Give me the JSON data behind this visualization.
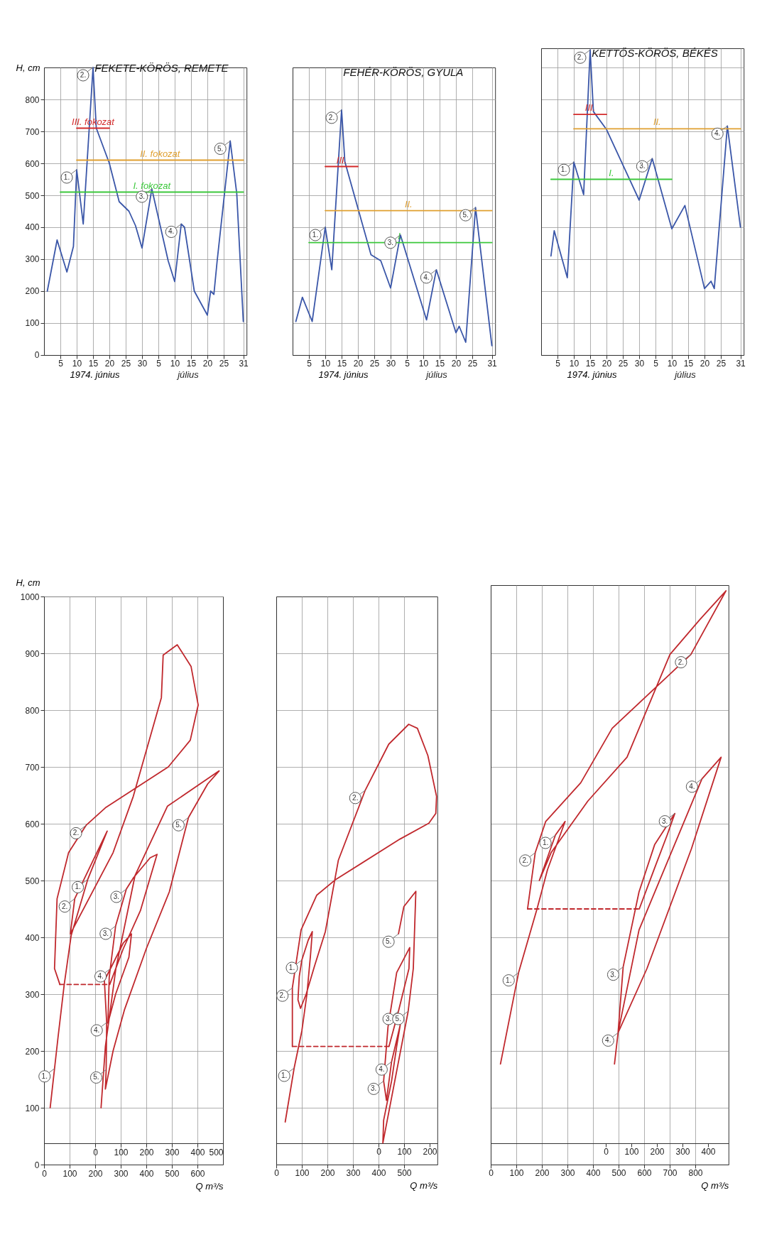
{
  "chart_data": [
    {
      "type": "line",
      "title": "FEKETE-KÖRÖS, REMETE",
      "ylabel": "H, cm",
      "xlabel": "1974. június",
      "xlim": [
        "1974-05-31",
        "1974-08-01"
      ],
      "ylim": [
        0,
        900
      ],
      "yticks": [
        0,
        100,
        200,
        300,
        400,
        500,
        600,
        700,
        800
      ],
      "grid": true,
      "xticks": [
        {
          "value": "1974-06-05",
          "label": "5"
        },
        {
          "value": "1974-06-10",
          "label": "10"
        },
        {
          "value": "1974-06-15",
          "label": "15"
        },
        {
          "value": "1974-06-20",
          "label": "20"
        },
        {
          "value": "1974-06-25",
          "label": "25"
        },
        {
          "value": "1974-06-30",
          "label": "30"
        },
        {
          "value": "1974-07-05",
          "label": "5"
        },
        {
          "value": "1974-07-10",
          "label": "10"
        },
        {
          "value": "1974-07-15",
          "label": "15"
        },
        {
          "value": "1974-07-20",
          "label": "20"
        },
        {
          "value": "1974-07-25",
          "label": "25"
        },
        {
          "value": "1974-07-31",
          "label": "31"
        }
      ],
      "series": [
        {
          "color": "#3a56a8",
          "x": [
            "1974-06-01",
            "1974-06-04",
            "1974-06-07",
            "1974-06-09",
            "1974-06-10",
            "1974-06-12",
            "1974-06-15",
            "1974-06-16",
            "1974-06-20",
            "1974-06-23",
            "1974-06-26",
            "1974-06-28",
            "1974-06-30",
            "1974-07-03",
            "1974-07-08",
            "1974-07-10",
            "1974-07-12",
            "1974-07-13",
            "1974-07-16",
            "1974-07-20",
            "1974-07-21",
            "1974-07-22",
            "1974-07-23",
            "1974-07-27",
            "1974-07-29",
            "1974-07-31"
          ],
          "values": [
            200,
            360,
            260,
            340,
            580,
            410,
            900,
            710,
            600,
            480,
            450,
            405,
            335,
            520,
            295,
            230,
            410,
            400,
            200,
            125,
            200,
            190,
            295,
            670,
            505,
            105
          ]
        },
        {
          "name": "III. fokozat",
          "color": "#d42a2a",
          "x": [
            "1974-06-10",
            "1974-06-20"
          ],
          "values": [
            710,
            710
          ]
        },
        {
          "name": "II. fokozat",
          "color": "#e0a030",
          "x": [
            "1974-06-10",
            "1974-07-31"
          ],
          "values": [
            610,
            610
          ]
        },
        {
          "name": "I. fokozat",
          "color": "#3cc83c",
          "x": [
            "1974-06-05",
            "1974-07-31"
          ],
          "values": [
            510,
            510
          ]
        }
      ],
      "annotations": [
        {
          "text": "1.",
          "x": "1974-06-10",
          "y": 580
        },
        {
          "text": "2.",
          "x": "1974-06-15",
          "y": 900
        },
        {
          "text": "3.",
          "x": "1974-07-03",
          "y": 520
        },
        {
          "text": "4.",
          "x": "1974-07-12",
          "y": 410
        },
        {
          "text": "5.",
          "x": "1974-07-27",
          "y": 670
        },
        "július"
      ]
    },
    {
      "type": "line",
      "title": "FEHÉR-KÖRÖS, GYULA",
      "xlabel": "1974. június",
      "xlim": [
        "1974-05-31",
        "1974-08-01"
      ],
      "ylim": [
        0,
        900
      ],
      "yticks": [
        0,
        100,
        200,
        300,
        400,
        500,
        600,
        700,
        800
      ],
      "grid": true,
      "tick_labels": "x",
      "xticks": [
        {
          "value": "1974-06-05",
          "label": "5"
        },
        {
          "value": "1974-06-10",
          "label": "10"
        },
        {
          "value": "1974-06-15",
          "label": "15"
        },
        {
          "value": "1974-06-20",
          "label": "20"
        },
        {
          "value": "1974-06-25",
          "label": "25"
        },
        {
          "value": "1974-06-30",
          "label": "30"
        },
        {
          "value": "1974-07-05",
          "label": "5"
        },
        {
          "value": "1974-07-10",
          "label": "10"
        },
        {
          "value": "1974-07-15",
          "label": "15"
        },
        {
          "value": "1974-07-20",
          "label": "20"
        },
        {
          "value": "1974-07-25",
          "label": "25"
        },
        {
          "value": "1974-07-31",
          "label": "31"
        }
      ],
      "series": [
        {
          "color": "#3a56a8",
          "x": [
            "1974-06-01",
            "1974-06-03",
            "1974-06-06",
            "1974-06-10",
            "1974-06-12",
            "1974-06-15",
            "1974-06-16",
            "1974-06-24",
            "1974-06-27",
            "1974-06-30",
            "1974-07-03",
            "1974-07-11",
            "1974-07-14",
            "1974-07-20",
            "1974-07-21",
            "1974-07-23",
            "1974-07-26",
            "1974-07-31"
          ],
          "values": [
            105,
            181,
            105,
            400,
            267,
            767,
            605,
            314,
            295,
            210,
            376,
            110,
            267,
            70,
            90,
            40,
            462,
            29
          ]
        },
        {
          "name": "III.",
          "color": "#d42a2a",
          "x": [
            "1974-06-10",
            "1974-06-20"
          ],
          "values": [
            590,
            590
          ]
        },
        {
          "name": "II.",
          "color": "#e0a030",
          "x": [
            "1974-06-10",
            "1974-07-31"
          ],
          "values": [
            452,
            452
          ]
        },
        {
          "name": "I.",
          "color": "#3cc83c",
          "x": [
            "1974-06-05",
            "1974-07-31"
          ],
          "values": [
            352,
            352
          ]
        }
      ],
      "annotations": [
        {
          "text": "1.",
          "x": "1974-06-10",
          "y": 400
        },
        {
          "text": "2.",
          "x": "1974-06-15",
          "y": 767
        },
        {
          "text": "3.",
          "x": "1974-07-03",
          "y": 376
        },
        {
          "text": "4.",
          "x": "1974-07-14",
          "y": 267
        },
        {
          "text": "5.",
          "x": "1974-07-26",
          "y": 462
        },
        "július"
      ]
    },
    {
      "type": "line",
      "title": "KETTŐS-KÖRÖS, BÉKÉS",
      "xlabel": "1974. június",
      "xlim": [
        "1974-05-31",
        "1974-08-01"
      ],
      "ylim": [
        0,
        960
      ],
      "yticks": [
        0,
        100,
        200,
        300,
        400,
        500,
        600,
        700,
        800,
        900
      ],
      "grid": true,
      "tick_labels": "x",
      "xticks": [
        {
          "value": "1974-06-05",
          "label": "5"
        },
        {
          "value": "1974-06-10",
          "label": "10"
        },
        {
          "value": "1974-06-15",
          "label": "15"
        },
        {
          "value": "1974-06-20",
          "label": "20"
        },
        {
          "value": "1974-06-25",
          "label": "25"
        },
        {
          "value": "1974-06-30",
          "label": "30"
        },
        {
          "value": "1974-07-05",
          "label": "5"
        },
        {
          "value": "1974-07-10",
          "label": "10"
        },
        {
          "value": "1974-07-15",
          "label": "15"
        },
        {
          "value": "1974-07-20",
          "label": "20"
        },
        {
          "value": "1974-07-25",
          "label": "25"
        },
        {
          "value": "1974-07-31",
          "label": "31"
        }
      ],
      "series": [
        {
          "color": "#3a56a8",
          "x": [
            "1974-06-03",
            "1974-06-04",
            "1974-06-08",
            "1974-06-10",
            "1974-06-13",
            "1974-06-15",
            "1974-06-16",
            "1974-06-20",
            "1974-06-30",
            "1974-07-04",
            "1974-07-10",
            "1974-07-14",
            "1974-07-20",
            "1974-07-22",
            "1974-07-23",
            "1974-07-27",
            "1974-07-31"
          ],
          "values": [
            310,
            389,
            242,
            604,
            502,
            955,
            762,
            706,
            485,
            615,
            395,
            468,
            208,
            231,
            208,
            717,
            400
          ]
        },
        {
          "name": "III.",
          "color": "#d42a2a",
          "x": [
            "1974-06-10",
            "1974-06-20"
          ],
          "values": [
            753,
            753
          ]
        },
        {
          "name": "II.",
          "color": "#e0a030",
          "x": [
            "1974-06-10",
            "1974-07-31"
          ],
          "values": [
            708,
            708
          ]
        },
        {
          "name": "I.",
          "color": "#3cc83c",
          "x": [
            "1974-06-03",
            "1974-07-10"
          ],
          "values": [
            550,
            550
          ]
        }
      ],
      "annotations": [
        {
          "text": "1.",
          "x": "1974-06-10",
          "y": 604
        },
        {
          "text": "2.",
          "x": "1974-06-15",
          "y": 955
        },
        {
          "text": "3.",
          "x": "1974-07-04",
          "y": 615
        },
        {
          "text": "4.",
          "x": "1974-07-27",
          "y": 717
        },
        "július"
      ]
    },
    {
      "type": "line",
      "xlabel": "Q m³/s",
      "ylabel": "H, cm",
      "xlim": [
        0,
        700
      ],
      "xticks": [
        0,
        100,
        200,
        300,
        400,
        500,
        600
      ],
      "x2lim": [
        -200,
        500
      ],
      "x2ticks": [
        0,
        100,
        200,
        300,
        400,
        500
      ],
      "ylim": [
        0,
        1000
      ],
      "yticks": [
        0,
        100,
        200,
        300,
        400,
        500,
        600,
        700,
        800,
        900,
        1000
      ],
      "grid": true,
      "series": [
        {
          "color": "#c0282d",
          "x": [
            24,
            55,
            79,
            106,
            171,
            247,
            120,
            103,
            270,
            349,
            459,
            466,
            521,
            575,
            603,
            572,
            486,
            240,
            164,
            96,
            51,
            41,
            62
          ],
          "values": [
            100,
            225,
            317,
            403,
            502,
            587,
            468,
            406,
            549,
            648,
            822,
            897,
            915,
            877,
            809,
            747,
            700,
            628,
            597,
            549,
            468,
            345,
            317
          ]
        },
        {
          "color": "#c0282d",
          "line_style": "dashed",
          "x": [
            62,
            255
          ],
          "values": [
            317,
            317
          ]
        },
        {
          "color": "#c0282d",
          "axis": "x2",
          "x": [
            57,
            110,
            177,
            225,
            242,
            215,
            150,
            122,
            80,
            55,
            50,
            80,
            132,
            142,
            110,
            60,
            36,
            45,
            43,
            40,
            70,
            115,
            200,
            290,
            365,
            440,
            485,
            283,
            156,
            81,
            40,
            23
          ],
          "values": [
            317,
            380,
            447,
            520,
            546,
            540,
            505,
            485,
            420,
            330,
            249,
            300,
            365,
            406,
            390,
            345,
            324,
            250,
            167,
            133,
            200,
            273,
            380,
            480,
            611,
            670,
            693,
            631,
            509,
            345,
            208,
            100
          ]
        }
      ],
      "annotations": [
        {
          "text": "1.",
          "x": 41,
          "y": 169
        },
        {
          "text": "1.",
          "x": 171,
          "y": 502
        },
        {
          "text": "2.",
          "x": 164,
          "y": 597
        },
        {
          "text": "2.",
          "x": 120,
          "y": 468
        },
        {
          "text": "3.",
          "x": 280,
          "y": 420
        },
        {
          "text": "3.",
          "x": 322,
          "y": 485
        },
        {
          "text": "4.",
          "x": 260,
          "y": 345
        },
        {
          "text": "4.",
          "x": 245,
          "y": 250
        },
        {
          "text": "5.",
          "x": 565,
          "y": 611
        },
        {
          "text": "5.",
          "x": 243,
          "y": 167
        }
      ]
    },
    {
      "type": "line",
      "xlabel": "Q m³/s",
      "xlim": [
        0,
        630
      ],
      "xticks": [
        0,
        100,
        200,
        300,
        400,
        500
      ],
      "x2lim": [
        -400,
        230
      ],
      "x2ticks": [
        0,
        100,
        200
      ],
      "ylim": [
        0,
        1000
      ],
      "yticks": [
        0,
        100,
        200,
        300,
        400,
        500,
        600,
        700,
        800,
        900
      ],
      "grid": true,
      "tick_labels": "x",
      "series": [
        {
          "color": "#c0282d",
          "x": [
            35,
            70,
            100,
            120,
            134,
            141,
            125,
            100,
            90,
            85,
            95,
            117,
            150,
            192,
            243,
            348,
            440,
            518,
            552,
            593,
            627,
            624,
            597,
            484,
            233,
            158,
            97,
            63,
            63
          ],
          "values": [
            75,
            170,
            235,
            300,
            369,
            410,
            395,
            360,
            331,
            290,
            275,
            300,
            350,
            410,
            536,
            659,
            740,
            775,
            768,
            720,
            648,
            618,
            601,
            573,
            502,
            474,
            413,
            311,
            208
          ]
        },
        {
          "color": "#c0282d",
          "line_style": "dashed",
          "x": [
            63,
            440
          ],
          "values": [
            208,
            208
          ]
        },
        {
          "color": "#c0282d",
          "axis": "x2",
          "x": [
            41,
            78,
            119,
            122,
            71,
            37,
            20,
            31,
            51,
            85,
            71,
            51,
            20,
            17,
            116,
            136,
            146,
            99,
            78
          ],
          "values": [
            208,
            270,
            345,
            382,
            338,
            242,
            147,
            113,
            181,
            246,
            208,
            147,
            78,
            38,
            270,
            345,
            481,
            454,
            406
          ]
        }
      ],
      "annotations": [
        {
          "text": "1.",
          "x": 70,
          "y": 170
        },
        {
          "text": "1.",
          "x": 100,
          "y": 360
        },
        {
          "text": "2.",
          "x": 63,
          "y": 311
        },
        {
          "text": "2.",
          "x": 348,
          "y": 659
        },
        {
          "text": "3.",
          "x": 478,
          "y": 270
        },
        {
          "text": "3.",
          "x": 420,
          "y": 147
        },
        {
          "text": "4.",
          "x": 451,
          "y": 181
        },
        {
          "text": "5.",
          "x": 516,
          "y": 270
        },
        {
          "text": "5.",
          "x": 478,
          "y": 406
        }
      ]
    },
    {
      "type": "line",
      "xlabel": "Q m³/s",
      "xlim": [
        0,
        930
      ],
      "xticks": [
        0,
        100,
        200,
        300,
        400,
        500,
        600,
        700,
        800
      ],
      "x2lim": [
        -450,
        480
      ],
      "x2ticks": [
        0,
        100,
        200,
        300,
        400
      ],
      "ylim": [
        0,
        1020
      ],
      "yticks": [
        0,
        100,
        200,
        300,
        400,
        500,
        600,
        700,
        800,
        900
      ],
      "grid": true,
      "tick_labels": "x",
      "series": [
        {
          "color": "#c0282d",
          "x": [
            38,
            109,
            181,
            222,
            291,
            253,
            190,
            236,
            380,
            533,
            701,
            817,
            920,
            783,
            475,
            352,
            215,
            174,
            144
          ],
          "values": [
            177,
            338,
            450,
            519,
            604,
            580,
            500,
            549,
            640,
            717,
            898,
            959,
            1010,
            898,
            768,
            672,
            604,
            549,
            450
          ]
        },
        {
          "color": "#c0282d",
          "line_style": "dashed",
          "x": [
            144,
            581
          ],
          "values": [
            450,
            450
          ]
        },
        {
          "color": "#c0282d",
          "axis": "x2",
          "x": [
            131,
            191,
            240,
            270,
            191,
            130,
            68,
            48,
            161,
            335,
            451,
            376,
            130,
            48,
            34
          ],
          "values": [
            450,
            522,
            580,
            618,
            563,
            480,
            348,
            232,
            345,
            556,
            717,
            679,
            413,
            232,
            177
          ]
        }
      ],
      "annotations": [
        {
          "text": "1.",
          "x": 109,
          "y": 338
        },
        {
          "text": "1.",
          "x": 253,
          "y": 580
        },
        {
          "text": "2.",
          "x": 174,
          "y": 549
        },
        {
          "text": "2.",
          "x": 783,
          "y": 898
        },
        {
          "text": "3.",
          "x": 720,
          "y": 618
        },
        {
          "text": "3.",
          "x": 518,
          "y": 348
        },
        {
          "text": "4.",
          "x": 826,
          "y": 679
        },
        {
          "text": "4.",
          "x": 498,
          "y": 232
        }
      ]
    }
  ]
}
